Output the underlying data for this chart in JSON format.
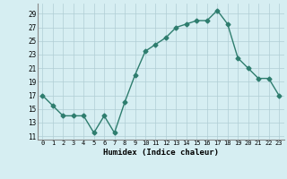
{
  "x": [
    0,
    1,
    2,
    3,
    4,
    5,
    6,
    7,
    8,
    9,
    10,
    11,
    12,
    13,
    14,
    15,
    16,
    17,
    18,
    19,
    20,
    21,
    22,
    23
  ],
  "y": [
    17,
    15.5,
    14,
    14,
    14,
    11.5,
    14,
    11.5,
    16,
    20,
    23.5,
    24.5,
    25.5,
    27,
    27.5,
    28,
    28,
    29.5,
    27.5,
    22.5,
    21,
    19.5,
    19.5,
    17
  ],
  "xlabel": "Humidex (Indice chaleur)",
  "yticks": [
    11,
    13,
    15,
    17,
    19,
    21,
    23,
    25,
    27,
    29
  ],
  "xticks": [
    0,
    1,
    2,
    3,
    4,
    5,
    6,
    7,
    8,
    9,
    10,
    11,
    12,
    13,
    14,
    15,
    16,
    17,
    18,
    19,
    20,
    21,
    22,
    23
  ],
  "ylim": [
    10.5,
    30.5
  ],
  "xlim": [
    -0.5,
    23.5
  ],
  "line_color": "#2e7d6e",
  "bg_color": "#d6eef2",
  "grid_color": "#b0cdd4",
  "marker": "D",
  "markersize": 2.5,
  "linewidth": 1.0
}
